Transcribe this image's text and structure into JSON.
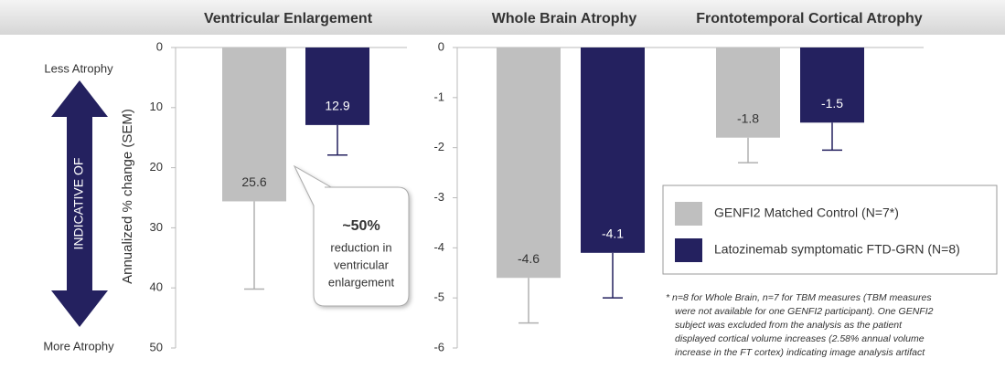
{
  "side_labels": {
    "top": "Less Atrophy",
    "middle": "INDICATIVE OF",
    "bottom": "More Atrophy"
  },
  "chart_data": [
    {
      "type": "bar",
      "title": "Ventricular Enlargement",
      "ylabel": "Annualized % change (SEM)",
      "ylim": [
        0,
        50
      ],
      "yticks": [
        0,
        10,
        20,
        30,
        40,
        50
      ],
      "series": [
        {
          "color": "#bfbfbf",
          "values": [
            25.6
          ],
          "errors": [
            14.6
          ]
        },
        {
          "color": "#24215f",
          "values": [
            12.9
          ],
          "errors": [
            5.0
          ]
        }
      ],
      "callout": {
        "headline": "~50%",
        "lines": [
          "reduction in",
          "ventricular",
          "enlargement"
        ]
      }
    },
    {
      "type": "bar",
      "title": "Whole Brain Atrophy",
      "ylim": [
        0,
        -6
      ],
      "yticks": [
        0,
        -1,
        -2,
        -3,
        -4,
        -5,
        -6
      ],
      "series": [
        {
          "name": "GENFI2 Matched Control (N=7*)",
          "color": "#bfbfbf",
          "values": [
            -4.6
          ],
          "errors": [
            0.9
          ]
        },
        {
          "name": "Latozinemab symptomatic FTD-GRN (N=8)",
          "color": "#24215f",
          "values": [
            -4.1
          ],
          "errors": [
            0.9
          ]
        }
      ],
      "footnote": [
        "* n=8 for Whole Brain, n=7 for TBM measures (TBM measures",
        "were not available for one GENFI2 participant). One GENFI2",
        "subject was excluded from the analysis as the patient",
        "displayed cortical volume increases (2.58% annual volume",
        "increase in the FT cortex) indicating image analysis artifact"
      ]
    },
    {
      "type": "bar",
      "title": "Frontotemporal Cortical Atrophy",
      "ylim": [
        0,
        -6
      ],
      "series": [
        {
          "color": "#bfbfbf",
          "values": [
            -1.8
          ],
          "errors": [
            0.5
          ]
        },
        {
          "color": "#24215f",
          "values": [
            -1.5
          ],
          "errors": [
            0.55
          ]
        }
      ]
    }
  ]
}
